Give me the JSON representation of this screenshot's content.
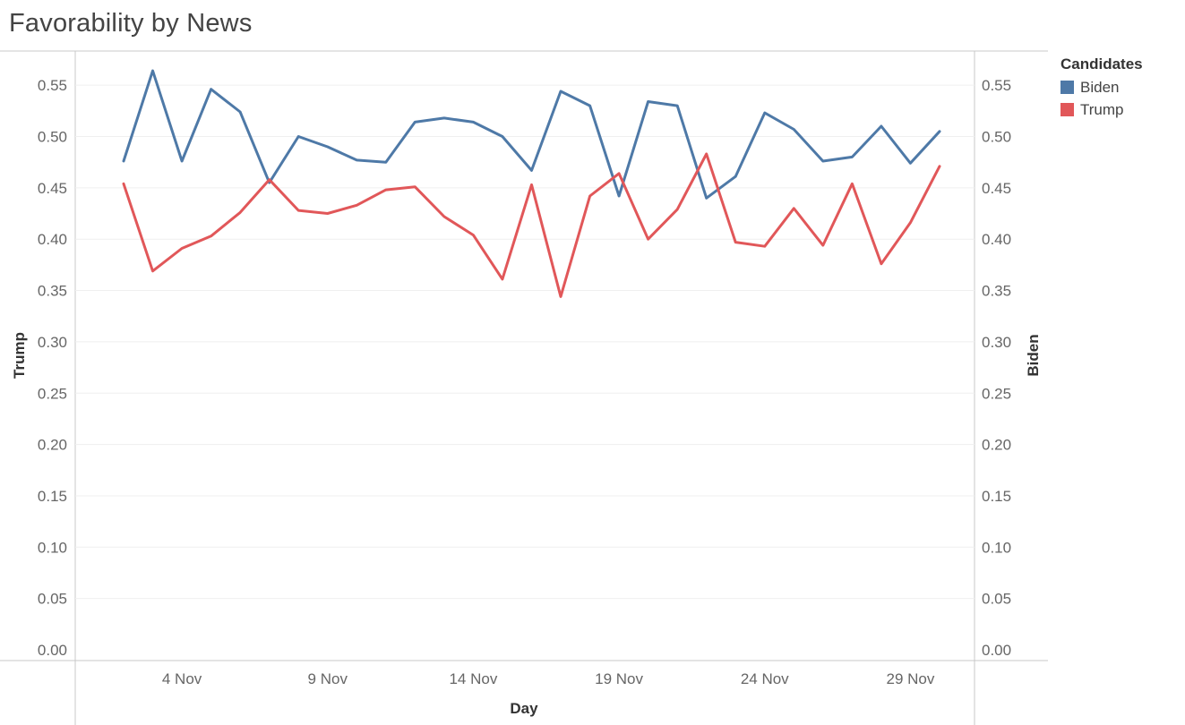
{
  "title": "Favorability by News",
  "legend": {
    "title": "Candidates",
    "items": [
      {
        "label": "Biden",
        "color": "#4e79a7"
      },
      {
        "label": "Trump",
        "color": "#e15759"
      }
    ]
  },
  "chart_data": {
    "type": "line",
    "title": "Favorability by News",
    "xlabel": "Day",
    "ylabel_left": "Trump",
    "ylabel_right": "Biden",
    "ylim": [
      0,
      0.59
    ],
    "y_ticks": [
      "0.00",
      "0.05",
      "0.10",
      "0.15",
      "0.20",
      "0.25",
      "0.30",
      "0.35",
      "0.40",
      "0.45",
      "0.50",
      "0.55"
    ],
    "x_ticks": [
      "4 Nov",
      "9 Nov",
      "14 Nov",
      "19 Nov",
      "24 Nov",
      "29 Nov"
    ],
    "x_tick_days": [
      4,
      9,
      14,
      19,
      24,
      29
    ],
    "x": [
      2,
      3,
      4,
      5,
      6,
      7,
      8,
      9,
      10,
      11,
      12,
      13,
      14,
      15,
      16,
      17,
      18,
      19,
      20,
      21,
      22,
      23,
      24,
      25,
      26,
      27,
      28,
      29,
      30
    ],
    "x_range": [
      0.34,
      31.2
    ],
    "grid": true,
    "legend_position": "right",
    "series": [
      {
        "name": "Biden",
        "color": "#4e79a7",
        "values": [
          0.476,
          0.564,
          0.476,
          0.546,
          0.524,
          0.455,
          0.5,
          0.49,
          0.477,
          0.475,
          0.514,
          0.518,
          0.514,
          0.5,
          0.467,
          0.544,
          0.53,
          0.442,
          0.534,
          0.53,
          0.44,
          0.461,
          0.523,
          0.507,
          0.476,
          0.48,
          0.51,
          0.474,
          0.505
        ]
      },
      {
        "name": "Trump",
        "color": "#e15759",
        "values": [
          0.454,
          0.369,
          0.391,
          0.403,
          0.426,
          0.458,
          0.428,
          0.425,
          0.433,
          0.448,
          0.451,
          0.422,
          0.404,
          0.361,
          0.453,
          0.344,
          0.442,
          0.464,
          0.4,
          0.429,
          0.483,
          0.397,
          0.393,
          0.43,
          0.394,
          0.454,
          0.376,
          0.416,
          0.471
        ]
      }
    ]
  }
}
